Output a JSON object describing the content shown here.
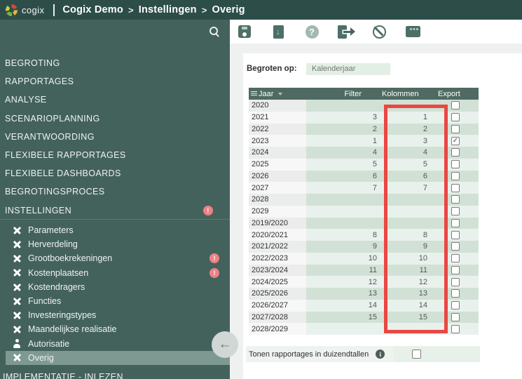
{
  "header": {
    "logo_text": "cogix",
    "breadcrumb": {
      "items": [
        "Cogix Demo",
        "Instellingen",
        "Overig"
      ],
      "separator": ">"
    }
  },
  "toolbar": {
    "buttons": [
      {
        "name": "save",
        "icon": "floppy-disk-icon"
      },
      {
        "name": "download",
        "icon": "file-download-icon"
      },
      {
        "name": "help",
        "icon": "question-mark-icon",
        "glyph": "?"
      },
      {
        "name": "export",
        "icon": "file-export-arrow-icon"
      },
      {
        "name": "block",
        "icon": "prohibition-icon"
      },
      {
        "name": "window",
        "icon": "app-window-icon"
      }
    ],
    "search_icon": "magnifier"
  },
  "sidebar": {
    "badge_char": "!",
    "items": [
      {
        "label": "BEGROTING"
      },
      {
        "label": "RAPPORTAGES"
      },
      {
        "label": "ANALYSE"
      },
      {
        "label": "SCENARIOPLANNING"
      },
      {
        "label": "VERANTWOORDING"
      },
      {
        "label": "FLEXIBELE RAPPORTAGES"
      },
      {
        "label": "FLEXIBELE DASHBOARDS"
      },
      {
        "label": "BEGROTINGSPROCES"
      },
      {
        "label": "INSTELLINGEN",
        "badge": true
      }
    ],
    "subitems": [
      {
        "label": "Parameters",
        "icon": "tools"
      },
      {
        "label": "Herverdeling",
        "icon": "tools"
      },
      {
        "label": "Grootboekrekeningen",
        "icon": "tools",
        "badge": true
      },
      {
        "label": "Kostenplaatsen",
        "icon": "tools",
        "badge": true
      },
      {
        "label": "Kostendragers",
        "icon": "tools"
      },
      {
        "label": "Functies",
        "icon": "tools"
      },
      {
        "label": "Investeringstypes",
        "icon": "tools"
      },
      {
        "label": "Maandelijkse realisatie",
        "icon": "tools"
      },
      {
        "label": "Autorisatie",
        "icon": "person"
      },
      {
        "label": "Overig",
        "icon": "tools",
        "selected": true
      }
    ],
    "footer_item": {
      "label": "IMPLEMENTATIE - INLEZEN"
    },
    "collapse_arrow": "←"
  },
  "content": {
    "begroten_label": "Begroten op:",
    "begroten_value": "Kalenderjaar",
    "table": {
      "columns": [
        "Jaar",
        "Filter",
        "Kolommen",
        "Export"
      ],
      "rows": [
        {
          "jaar": "2020",
          "filter": "",
          "kolommen": "",
          "export": false
        },
        {
          "jaar": "2021",
          "filter": "3",
          "kolommen": "1",
          "export": false
        },
        {
          "jaar": "2022",
          "filter": "2",
          "kolommen": "2",
          "export": false
        },
        {
          "jaar": "2023",
          "filter": "1",
          "kolommen": "3",
          "export": true
        },
        {
          "jaar": "2024",
          "filter": "4",
          "kolommen": "4",
          "export": false
        },
        {
          "jaar": "2025",
          "filter": "5",
          "kolommen": "5",
          "export": false
        },
        {
          "jaar": "2026",
          "filter": "6",
          "kolommen": "6",
          "export": false
        },
        {
          "jaar": "2027",
          "filter": "7",
          "kolommen": "7",
          "export": false
        },
        {
          "jaar": "2028",
          "filter": "",
          "kolommen": "",
          "export": false
        },
        {
          "jaar": "2029",
          "filter": "",
          "kolommen": "",
          "export": false
        },
        {
          "jaar": "2019/2020",
          "filter": "",
          "kolommen": "",
          "export": false
        },
        {
          "jaar": "2020/2021",
          "filter": "8",
          "kolommen": "8",
          "export": false
        },
        {
          "jaar": "2021/2022",
          "filter": "9",
          "kolommen": "9",
          "export": false
        },
        {
          "jaar": "2022/2023",
          "filter": "10",
          "kolommen": "10",
          "export": false
        },
        {
          "jaar": "2023/2024",
          "filter": "11",
          "kolommen": "11",
          "export": false
        },
        {
          "jaar": "2024/2025",
          "filter": "12",
          "kolommen": "12",
          "export": false
        },
        {
          "jaar": "2025/2026",
          "filter": "13",
          "kolommen": "13",
          "export": false
        },
        {
          "jaar": "2026/2027",
          "filter": "14",
          "kolommen": "14",
          "export": false
        },
        {
          "jaar": "2027/2028",
          "filter": "15",
          "kolommen": "15",
          "export": false
        },
        {
          "jaar": "2028/2029",
          "filter": "",
          "kolommen": "",
          "export": false
        }
      ],
      "check_glyph": "✓"
    },
    "toggle_label": "Tonen rapportages in duizendtallen",
    "toggle_checked": false,
    "annotation": {
      "type": "highlight-rectangle",
      "color": "#ea4743",
      "over_column": "Kolommen"
    }
  },
  "colors": {
    "topbar": "#2d4e48",
    "sidebar": "#44625c",
    "selected_item": "#7e9992",
    "badge": "#ed8286",
    "table_header": "#4e6a63",
    "row_green_dark": "#d2e1d6",
    "row_green_light": "#e9f1ed",
    "accent_red": "#ea4743"
  }
}
